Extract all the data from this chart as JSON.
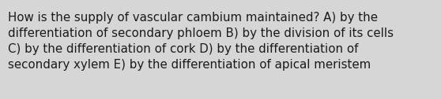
{
  "text": "How is the supply of vascular cambium maintained? A) by the\ndifferentiation of secondary phloem B) by the division of its cells\nC) by the differentiation of cork D) by the differentiation of\nsecondary xylem E) by the differentiation of apical meristem",
  "background_color": "#d6d6d6",
  "text_color": "#1a1a1a",
  "font_size": 10.8,
  "fig_width": 5.58,
  "fig_height": 1.26
}
